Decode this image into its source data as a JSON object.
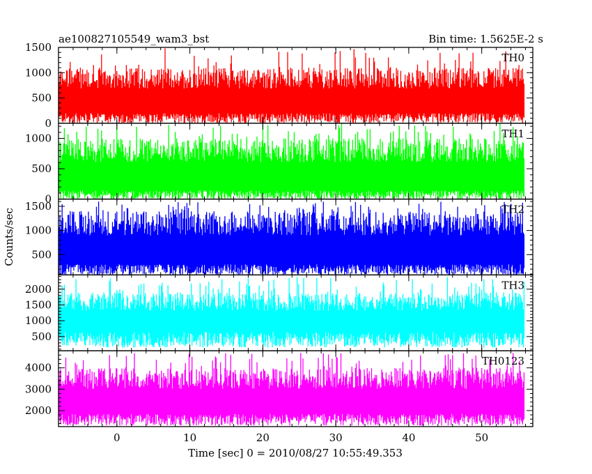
{
  "chart_data": {
    "type": "line",
    "title_left": "ae100827105549_wam3_bst",
    "title_right": "Bin time: 1.5625E-2 s",
    "xlabel": "Time [sec] 0 = 2010/08/27 10:55:49.353",
    "ylabel": "Counts/sec",
    "xlim": [
      -8,
      57
    ],
    "x_start": -7.9,
    "x_end": 55.9,
    "bin_time": 0.015625,
    "x_ticks": [
      0,
      10,
      20,
      30,
      40,
      50
    ],
    "panels": [
      {
        "name": "TH0",
        "color": "#ff0000",
        "ylim": [
          0,
          1500
        ],
        "y_ticks": [
          0,
          500,
          1000,
          1500
        ],
        "lo": 180,
        "hi": 1100,
        "peak": 1500,
        "floor": 0
      },
      {
        "name": "TH1",
        "color": "#00ff00",
        "ylim": [
          0,
          1250
        ],
        "y_ticks": [
          0,
          500,
          1000
        ],
        "lo": 130,
        "hi": 1000,
        "peak": 1250,
        "floor": 0
      },
      {
        "name": "TH2",
        "color": "#0000ff",
        "ylim": [
          80,
          1650
        ],
        "y_ticks": [
          500,
          1000,
          1500
        ],
        "lo": 280,
        "hi": 1400,
        "peak": 1600,
        "floor": 80
      },
      {
        "name": "TH3",
        "color": "#00ffff",
        "ylim": [
          50,
          2450
        ],
        "y_ticks": [
          500,
          1000,
          1500,
          2000
        ],
        "lo": 600,
        "hi": 1900,
        "peak": 2400,
        "floor": 150
      },
      {
        "name": "TH0123",
        "color": "#ff00ff",
        "ylim": [
          1250,
          4800
        ],
        "y_ticks": [
          2000,
          3000,
          4000
        ],
        "lo": 1800,
        "hi": 4000,
        "peak": 4700,
        "floor": 1300
      }
    ]
  }
}
